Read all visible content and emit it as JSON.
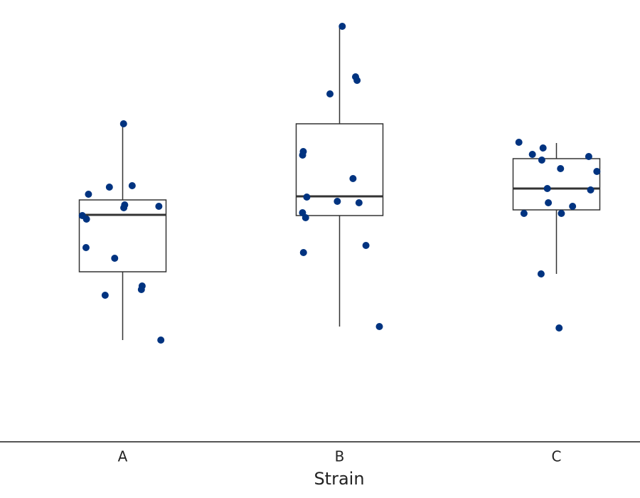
{
  "chart_data": {
    "type": "box",
    "xlabel": "Strain",
    "categories": [
      "A",
      "B",
      "C"
    ],
    "ylim": [
      0,
      621
    ],
    "box_color": "#333333",
    "point_color": "#003380",
    "boxes": [
      {
        "whislo": 143,
        "q1": 239,
        "med": 319,
        "q3": 340,
        "whishi": 446
      },
      {
        "whislo": 162,
        "q1": 318,
        "med": 345,
        "q3": 447,
        "whishi": 583
      },
      {
        "whislo": 236,
        "q1": 326,
        "med": 356,
        "q3": 398,
        "whishi": 420
      }
    ],
    "points": [
      [
        447,
        360,
        358,
        348,
        333,
        331,
        329,
        318,
        313,
        273,
        258,
        219,
        214,
        206,
        143
      ],
      [
        584,
        508,
        513,
        489,
        408,
        403,
        370,
        344,
        336,
        338,
        322,
        315,
        266,
        276,
        162
      ],
      [
        421,
        413,
        404,
        401,
        396,
        384,
        380,
        356,
        354,
        336,
        331,
        321,
        321,
        236,
        160
      ]
    ]
  }
}
